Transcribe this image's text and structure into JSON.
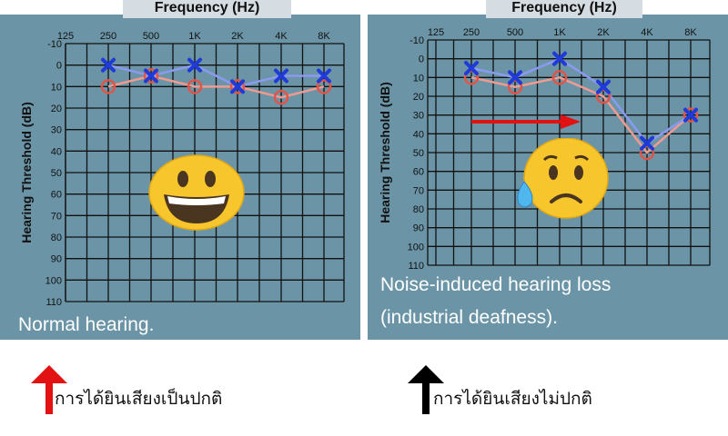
{
  "chart_data": [
    {
      "type": "line",
      "x_label": "Frequency (Hz)",
      "y_label": "Hearing Threshold (dB)",
      "categories": [
        "125",
        "250",
        "500",
        "1K",
        "2K",
        "4K",
        "8K"
      ],
      "y_ticks": [
        "-10",
        "0",
        "10",
        "20",
        "30",
        "40",
        "50",
        "60",
        "70",
        "80",
        "90",
        "100",
        "110"
      ],
      "ylim": [
        -10,
        110
      ],
      "y_inverted": true,
      "grid": true,
      "series": [
        {
          "marker": "x",
          "color": "#1f3ad6",
          "line_color": "#8a9af0",
          "x": [
            "250",
            "500",
            "1K",
            "2K",
            "4K",
            "8K"
          ],
          "values": [
            0,
            5,
            0,
            10,
            5,
            5
          ]
        },
        {
          "marker": "o",
          "color": "#e05548",
          "line_color": "#f09a90",
          "x": [
            "250",
            "500",
            "1K",
            "2K",
            "4K",
            "8K"
          ],
          "values": [
            10,
            5,
            10,
            10,
            15,
            10
          ]
        }
      ],
      "caption": "Normal hearing."
    },
    {
      "type": "line",
      "x_label": "Frequency (Hz)",
      "y_label": "Hearing Threshold (dB)",
      "categories": [
        "125",
        "250",
        "500",
        "1K",
        "2K",
        "4K",
        "8K"
      ],
      "y_ticks": [
        "-10",
        "0",
        "10",
        "20",
        "30",
        "40",
        "50",
        "60",
        "70",
        "80",
        "90",
        "100",
        "110"
      ],
      "ylim": [
        -10,
        110
      ],
      "y_inverted": true,
      "grid": true,
      "series": [
        {
          "marker": "x",
          "color": "#1f3ad6",
          "line_color": "#8a9af0",
          "x": [
            "250",
            "500",
            "1K",
            "2K",
            "4K",
            "8K"
          ],
          "values": [
            5,
            10,
            0,
            15,
            45,
            30
          ]
        },
        {
          "marker": "o",
          "color": "#e05548",
          "line_color": "#f09a90",
          "x": [
            "250",
            "500",
            "1K",
            "2K",
            "4K",
            "8K"
          ],
          "values": [
            10,
            15,
            10,
            20,
            50,
            30
          ]
        }
      ],
      "caption_lines": [
        "Noise-induced hearing loss",
        "(industrial deafness)."
      ]
    }
  ],
  "bottom": {
    "left_text": "การได้ยินเสียงเป็นปกติ",
    "right_text": "การได้ยินเสียงไม่ปกติ",
    "left_arrow_color": "#e31212",
    "right_arrow_color": "#000000"
  },
  "emojis": {
    "left": "grinning-face",
    "right": "sad-but-relieved-face"
  }
}
